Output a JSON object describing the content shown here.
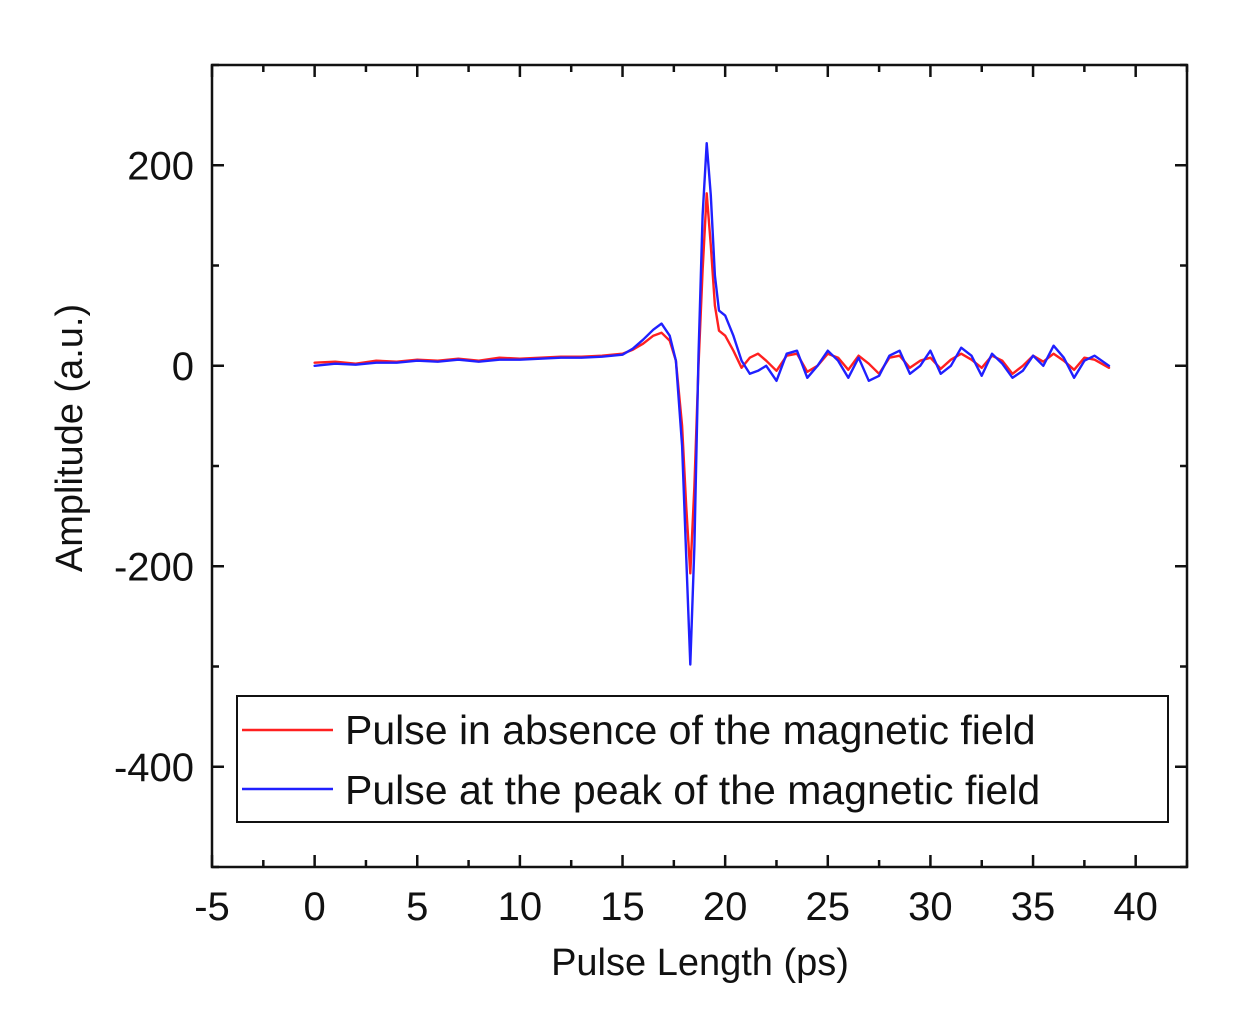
{
  "chart_data": {
    "type": "line",
    "title": "",
    "xlabel": "Pulse Length (ps)",
    "ylabel": "Amplitude (a.u.)",
    "xlim": [
      -5,
      42.5
    ],
    "ylim": [
      -500,
      300
    ],
    "x_ticks": [
      -5,
      0,
      5,
      10,
      15,
      20,
      25,
      30,
      35,
      40
    ],
    "x_tick_labels": [
      "-5",
      "0",
      "5",
      "10",
      "15",
      "20",
      "25",
      "30",
      "35",
      "40"
    ],
    "y_ticks": [
      -400,
      -200,
      0,
      200
    ],
    "y_tick_labels": [
      "-400",
      "-200",
      "0",
      "200"
    ],
    "grid": false,
    "legend_position": "bottom-right",
    "series": [
      {
        "name": "Pulse in absence of the magnetic field",
        "color": "#ff2020",
        "x": [
          0,
          1,
          2,
          3,
          4,
          5,
          6,
          7,
          8,
          9,
          10,
          11,
          12,
          13,
          14,
          15,
          15.5,
          16,
          16.5,
          16.9,
          17.3,
          17.6,
          17.9,
          18.1,
          18.3,
          18.5,
          18.7,
          18.9,
          19.1,
          19.3,
          19.5,
          19.7,
          20,
          20.4,
          20.8,
          21.2,
          21.6,
          22,
          22.5,
          23,
          23.5,
          24,
          24.5,
          25,
          25.5,
          26,
          26.5,
          27,
          27.5,
          28,
          28.5,
          29,
          29.5,
          30,
          30.5,
          31,
          31.5,
          32,
          32.5,
          33,
          33.5,
          34,
          34.5,
          35,
          35.5,
          36,
          36.5,
          37,
          37.5,
          38,
          38.7
        ],
        "y": [
          3,
          4,
          2,
          5,
          4,
          6,
          5,
          7,
          5,
          8,
          7,
          8,
          9,
          9,
          10,
          12,
          16,
          22,
          30,
          33,
          25,
          5,
          -60,
          -140,
          -207,
          -120,
          0,
          95,
          172,
          120,
          60,
          35,
          30,
          15,
          -2,
          8,
          12,
          5,
          -5,
          10,
          12,
          -6,
          0,
          12,
          8,
          -4,
          10,
          2,
          -8,
          8,
          10,
          -2,
          5,
          8,
          -3,
          6,
          12,
          6,
          -2,
          10,
          5,
          -8,
          0,
          10,
          4,
          12,
          5,
          -4,
          8,
          6,
          -2
        ]
      },
      {
        "name": "Pulse at the peak of the magnetic field",
        "color": "#2020ff",
        "x": [
          0,
          1,
          2,
          3,
          4,
          5,
          6,
          7,
          8,
          9,
          10,
          11,
          12,
          13,
          14,
          15,
          15.5,
          16,
          16.5,
          16.9,
          17.3,
          17.6,
          17.9,
          18.1,
          18.3,
          18.5,
          18.7,
          18.9,
          19.1,
          19.3,
          19.5,
          19.7,
          20,
          20.4,
          20.8,
          21.2,
          21.6,
          22,
          22.5,
          23,
          23.5,
          24,
          24.5,
          25,
          25.5,
          26,
          26.5,
          27,
          27.5,
          28,
          28.5,
          29,
          29.5,
          30,
          30.5,
          31,
          31.5,
          32,
          32.5,
          33,
          33.5,
          34,
          34.5,
          35,
          35.5,
          36,
          36.5,
          37,
          37.5,
          38,
          38.7
        ],
        "y": [
          0,
          2,
          1,
          3,
          3,
          5,
          4,
          6,
          4,
          6,
          6,
          7,
          8,
          8,
          9,
          11,
          17,
          26,
          36,
          42,
          30,
          5,
          -80,
          -190,
          -298,
          -180,
          10,
          150,
          222,
          170,
          90,
          55,
          50,
          30,
          5,
          -8,
          -5,
          0,
          -15,
          12,
          15,
          -12,
          0,
          15,
          5,
          -12,
          8,
          -15,
          -10,
          10,
          15,
          -8,
          0,
          15,
          -8,
          0,
          18,
          10,
          -10,
          12,
          2,
          -12,
          -5,
          10,
          0,
          20,
          8,
          -12,
          5,
          10,
          0
        ]
      }
    ]
  }
}
